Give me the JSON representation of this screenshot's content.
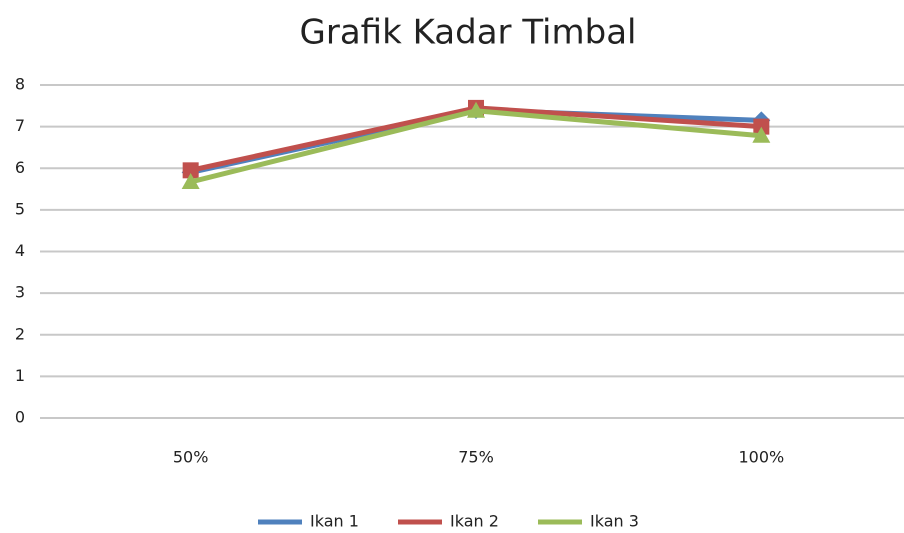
{
  "chart_data": {
    "type": "line",
    "title": "Grafik Kadar Timbal",
    "categories": [
      "50%",
      "75%",
      "100%"
    ],
    "series": [
      {
        "name": "Ikan 1",
        "color": "#4f81bd",
        "marker": "diamond",
        "values": [
          5.9,
          7.4,
          7.15
        ]
      },
      {
        "name": "Ikan 2",
        "color": "#c0504d",
        "marker": "square",
        "values": [
          5.95,
          7.45,
          7.0
        ]
      },
      {
        "name": "Ikan 3",
        "color": "#9bbb59",
        "marker": "triangle",
        "values": [
          5.67,
          7.38,
          6.78
        ]
      }
    ],
    "ylim": [
      0,
      8
    ],
    "yticks": [
      0,
      1,
      2,
      3,
      4,
      5,
      6,
      7,
      8
    ],
    "grid": true,
    "legend": "bottom"
  }
}
